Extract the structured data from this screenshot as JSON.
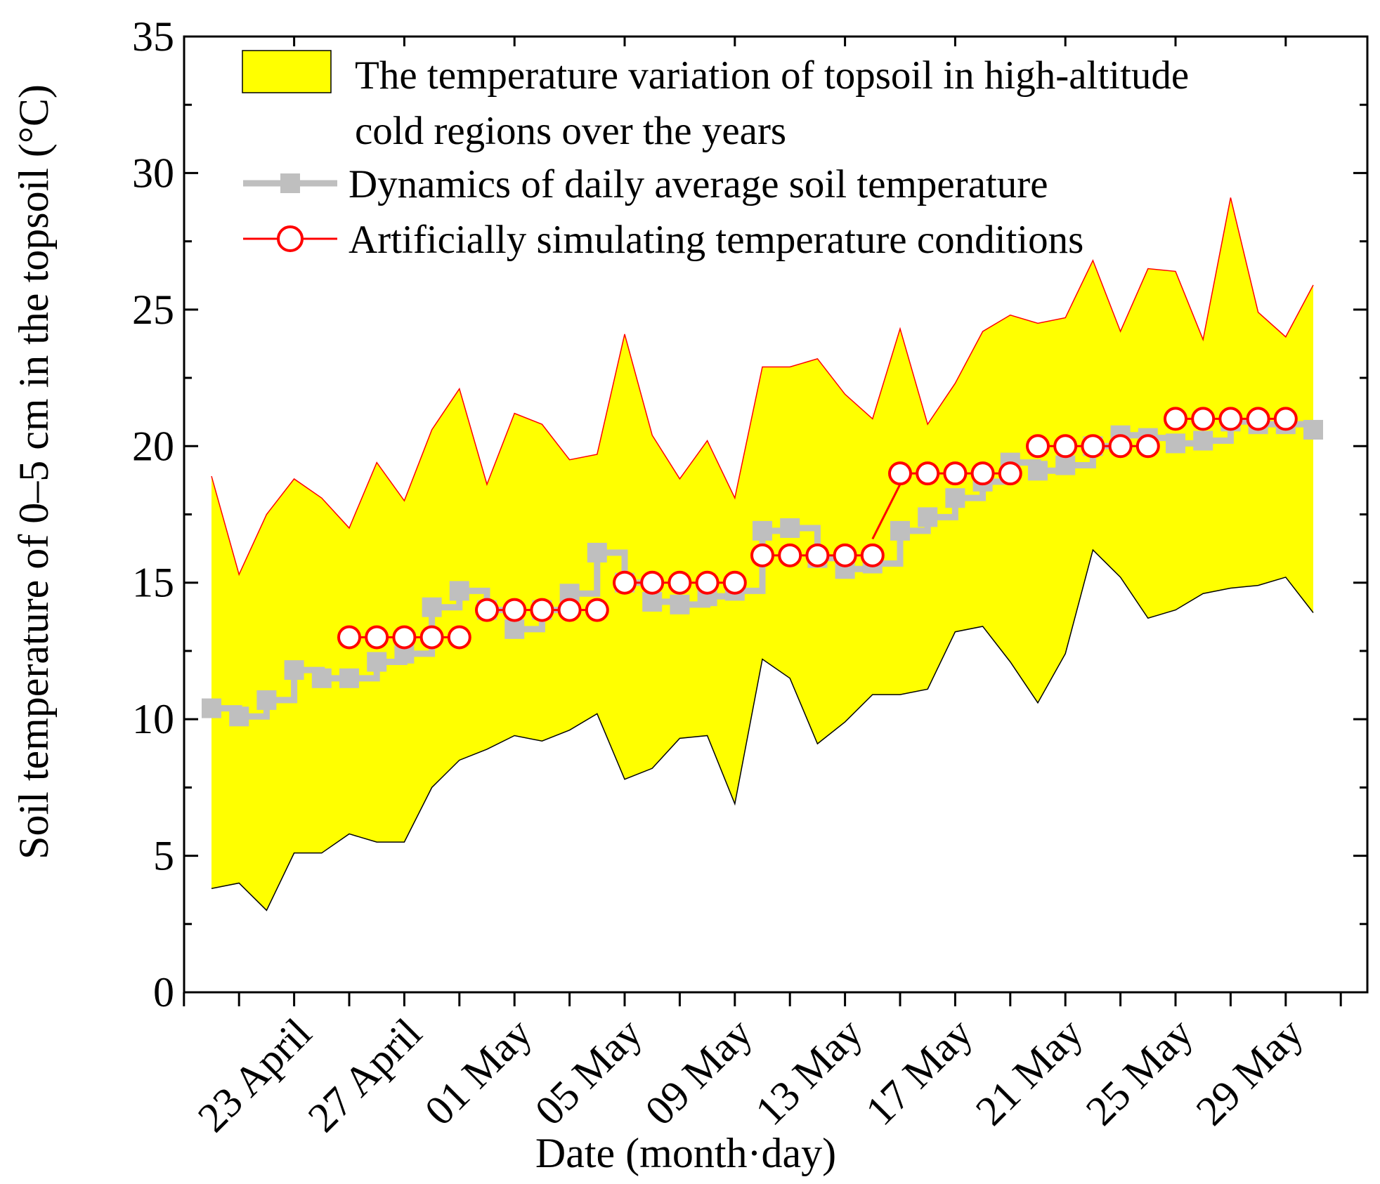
{
  "chart_data": {
    "type": "line",
    "x": [
      "04-20",
      "04-21",
      "04-22",
      "04-23",
      "04-24",
      "04-25",
      "04-26",
      "04-27",
      "04-28",
      "04-29",
      "04-30",
      "05-01",
      "05-02",
      "05-03",
      "05-04",
      "05-05",
      "05-06",
      "05-07",
      "05-08",
      "05-09",
      "05-10",
      "05-11",
      "05-12",
      "05-13",
      "05-14",
      "05-15",
      "05-16",
      "05-17",
      "05-18",
      "05-19",
      "05-20",
      "05-21",
      "05-22",
      "05-23",
      "05-24",
      "05-25",
      "05-26",
      "05-27",
      "05-28",
      "05-29",
      "05-30"
    ],
    "ylabel": "Soil temperature of 0–5 cm in the  topsoil (°C)",
    "xlabel": "Date (month·day)",
    "ylim": [
      0,
      35
    ],
    "yticks": [
      0,
      5,
      10,
      15,
      20,
      25,
      30,
      35
    ],
    "xticks": [
      {
        "x": "04-23",
        "label": "23 April"
      },
      {
        "x": "04-27",
        "label": "27 April"
      },
      {
        "x": "05-01",
        "label": "01 May"
      },
      {
        "x": "05-05",
        "label": "05 May"
      },
      {
        "x": "05-09",
        "label": "09 May"
      },
      {
        "x": "05-13",
        "label": "13 May"
      },
      {
        "x": "05-17",
        "label": "17 May"
      },
      {
        "x": "05-21",
        "label": "21 May"
      },
      {
        "x": "05-25",
        "label": "25 May"
      },
      {
        "x": "05-29",
        "label": "29 May"
      }
    ],
    "x_minor_ticks": [
      "04-19",
      "04-21",
      "04-25",
      "04-29",
      "05-03",
      "05-07",
      "05-11",
      "05-15",
      "05-19",
      "05-23",
      "05-27",
      "05-31"
    ],
    "band": {
      "name": "The temperature variation of topsoil in high-altitude cold regions over the years",
      "upper": [
        18.9,
        15.3,
        17.5,
        18.8,
        18.1,
        17.0,
        19.4,
        18.0,
        20.6,
        22.1,
        18.6,
        21.2,
        20.8,
        19.5,
        19.7,
        24.1,
        20.4,
        18.8,
        20.2,
        18.1,
        22.9,
        22.9,
        23.2,
        21.9,
        21.0,
        24.3,
        20.8,
        22.3,
        24.2,
        24.8,
        24.5,
        24.7,
        26.8,
        24.2,
        26.5,
        26.4,
        23.9,
        29.1,
        24.9,
        24.0,
        25.9
      ],
      "lower": [
        3.8,
        4.0,
        3.0,
        5.1,
        5.1,
        5.8,
        5.5,
        5.5,
        7.5,
        8.5,
        8.9,
        9.4,
        9.2,
        9.6,
        10.2,
        7.8,
        8.2,
        9.3,
        9.4,
        6.9,
        12.2,
        11.5,
        9.1,
        9.9,
        10.9,
        10.9,
        11.1,
        13.2,
        13.4,
        12.1,
        10.6,
        12.4,
        16.2,
        15.2,
        13.7,
        14.0,
        14.6,
        14.8,
        14.9,
        15.2,
        13.9
      ]
    },
    "series": [
      {
        "name": "Dynamics of daily average soil temperature",
        "color": "#bfbfbf",
        "marker": "square",
        "step": true,
        "values": [
          10.4,
          10.1,
          10.7,
          11.8,
          11.5,
          11.5,
          12.1,
          12.4,
          14.1,
          14.7,
          14.0,
          13.3,
          14.0,
          14.6,
          16.1,
          15.0,
          14.3,
          14.2,
          14.5,
          14.7,
          16.9,
          17.0,
          15.9,
          15.5,
          15.7,
          16.9,
          17.4,
          18.1,
          18.7,
          19.4,
          19.1,
          19.3,
          20.0,
          20.4,
          20.3,
          20.1,
          20.2,
          20.9,
          20.8,
          20.8,
          20.6
        ]
      },
      {
        "name": "Artificially simulating temperature conditions",
        "color": "#ff0000",
        "marker": "circle",
        "segments": [
          {
            "start": "04-25",
            "values": [
              13,
              13,
              13,
              13,
              13
            ]
          },
          {
            "start": "04-30",
            "values": [
              14,
              14,
              14,
              14,
              14
            ]
          },
          {
            "start": "05-05",
            "values": [
              15,
              15,
              15,
              15,
              15
            ]
          },
          {
            "start": "05-10",
            "values": [
              16,
              16,
              16,
              16,
              16
            ]
          },
          {
            "start": "05-15",
            "values": [
              19,
              19,
              19,
              19,
              19
            ]
          },
          {
            "start": "05-20",
            "values": [
              20,
              20,
              20,
              20,
              20
            ]
          },
          {
            "start": "05-25",
            "values": [
              21,
              21,
              21,
              21,
              21
            ]
          }
        ],
        "connector": {
          "from": [
            "05-14",
            16.6
          ],
          "to": [
            "05-15",
            18.6
          ]
        }
      }
    ],
    "band_color": "#ffff00",
    "band_edge_upper_color": "#ff0000",
    "band_edge_lower_color": "#000000",
    "grid": false,
    "legend_position": "top-left"
  }
}
